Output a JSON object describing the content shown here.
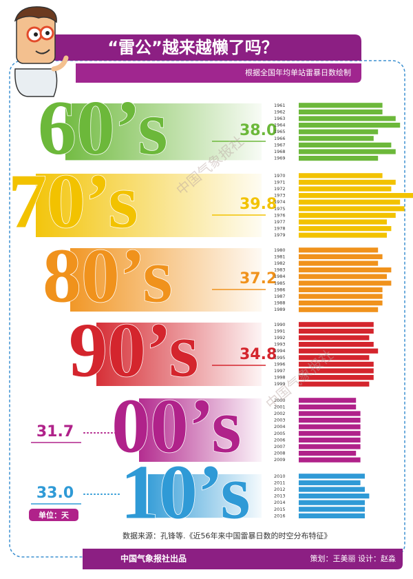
{
  "chart_data": {
    "type": "bar",
    "title": "“雷公”越来越懒了吗？",
    "subtitle": "根据全国年均单站雷暴日数绘制",
    "watermark": "中国气象报社",
    "unit": "单位：天",
    "source": "数据来源：孔锋等.《近56年来中国雷暴日数的时空分布特征》",
    "publisher": "中国气象报社出品",
    "credits": "策划：王美丽   设计：赵淼",
    "groups": [
      {
        "label": "60’s",
        "color": "#6cb83a",
        "average": 38.0,
        "average_label": "38.0",
        "categories": [
          "1961",
          "1962",
          "1963",
          "1964",
          "1965",
          "1966",
          "1967",
          "1968",
          "1969"
        ],
        "values": [
          37,
          37,
          40,
          41,
          36,
          35,
          39,
          40,
          36
        ]
      },
      {
        "label": "70’s",
        "color": "#f2c200",
        "average": 39.8,
        "average_label": "39.8",
        "categories": [
          "1970",
          "1971",
          "1972",
          "1973",
          "1974",
          "1975",
          "1976",
          "1977",
          "1978",
          "1979"
        ],
        "values": [
          37,
          40,
          39,
          44,
          41,
          42,
          40,
          38,
          39,
          38
        ]
      },
      {
        "label": "80’s",
        "color": "#f0921c",
        "average": 37.2,
        "average_label": "37.2",
        "categories": [
          "1980",
          "1981",
          "1982",
          "1983",
          "1984",
          "1985",
          "1986",
          "1987",
          "1988",
          "1989"
        ],
        "values": [
          36,
          37,
          36,
          39,
          38,
          39,
          37,
          37,
          37,
          36
        ]
      },
      {
        "label": "90’s",
        "color": "#d4252d",
        "average": 34.8,
        "average_label": "34.8",
        "categories": [
          "1990",
          "1991",
          "1992",
          "1993",
          "1994",
          "1995",
          "1996",
          "1997",
          "1998",
          "1999"
        ],
        "values": [
          35,
          35,
          34,
          35,
          36,
          34,
          35,
          35,
          35,
          34
        ]
      },
      {
        "label": "00’s",
        "color": "#b0228a",
        "average": 31.7,
        "average_label": "31.7",
        "categories": [
          "2000",
          "2001",
          "2002",
          "2003",
          "2004",
          "2005",
          "2006",
          "2007",
          "2008",
          "2009"
        ],
        "values": [
          31,
          31,
          32,
          32,
          32,
          32,
          32,
          32,
          31,
          32
        ]
      },
      {
        "label": "10’s",
        "color": "#2f9ad6",
        "average": 33.0,
        "average_label": "33.0",
        "categories": [
          "2010",
          "2011",
          "2012",
          "2013",
          "2014",
          "2015",
          "2016"
        ],
        "values": [
          33,
          32,
          33,
          34,
          33,
          33,
          33
        ]
      }
    ]
  }
}
